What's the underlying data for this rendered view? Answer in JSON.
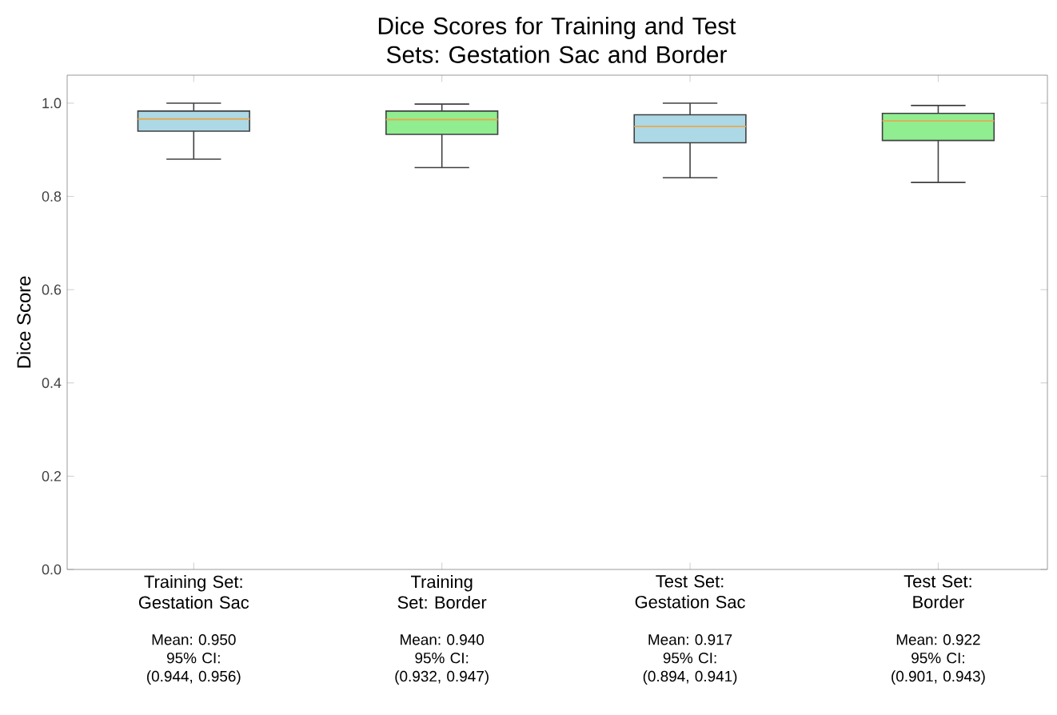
{
  "chart_data": {
    "type": "box",
    "title": "Dice Scores for Training and Test Sets: Gestation Sac and Border",
    "ylabel": "Dice Score",
    "categories": [
      "Training Set: Gestation Sac",
      "Training Set: Border",
      "Test Set: Gestation Sac",
      "Test Set: Border"
    ],
    "colors": [
      "#add8e6",
      "#90ee90",
      "#add8e6",
      "#90ee90"
    ],
    "boxes": [
      {
        "low": 0.88,
        "q1": 0.94,
        "median": 0.966,
        "q3": 0.983,
        "high": 1.0
      },
      {
        "low": 0.862,
        "q1": 0.933,
        "median": 0.965,
        "q3": 0.983,
        "high": 0.998
      },
      {
        "low": 0.84,
        "q1": 0.915,
        "median": 0.95,
        "q3": 0.975,
        "high": 1.0
      },
      {
        "low": 0.83,
        "q1": 0.92,
        "median": 0.962,
        "q3": 0.978,
        "high": 0.995
      }
    ],
    "ylim": [
      0,
      1.06
    ],
    "yticks": [
      {
        "value": 0,
        "label": "0.0"
      },
      0.2,
      0.4,
      0.6,
      0.8,
      {
        "value": 1,
        "label": "1.0"
      }
    ],
    "annotations": [
      "Mean: 0.950 95% CI: (0.944, 0.956)",
      "Mean: 0.940 95% CI: (0.932, 0.947)",
      "Mean: 0.917 95% CI: (0.894, 0.941)",
      "Mean: 0.922 95% CI: (0.901, 0.943)"
    ],
    "grid": false
  }
}
